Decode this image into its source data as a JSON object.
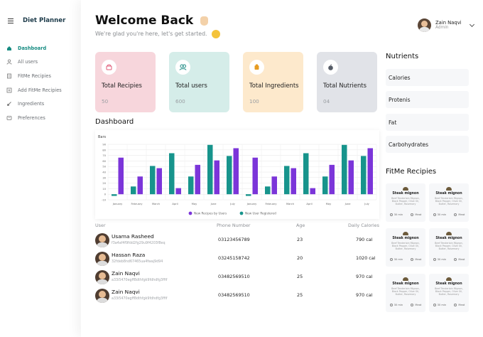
{
  "app": {
    "title": "Diet Planner"
  },
  "sidebar": {
    "items": [
      {
        "label": "Dashboard",
        "icon": "home-icon",
        "active": true
      },
      {
        "label": "All users",
        "icon": "users-icon"
      },
      {
        "label": "FitMe Recipies",
        "icon": "recipe-icon"
      },
      {
        "label": "Add FitMe Recipies",
        "icon": "add-icon"
      },
      {
        "label": "Ingredients",
        "icon": "ingredient-icon"
      },
      {
        "label": "Preferences",
        "icon": "preferences-icon"
      }
    ]
  },
  "header": {
    "welcome": "Welcome Back",
    "subtitle": "We're glad you're here, let's get started."
  },
  "profile": {
    "name": "Zain Naqvi",
    "role": "Admin"
  },
  "stats": [
    {
      "title": "Total Recipies",
      "value": "50",
      "bg": "#f7d6dc",
      "icon_color": "#e05a77"
    },
    {
      "title": "Total users",
      "value": "600",
      "bg": "#d5ede9",
      "icon_color": "#1d8b84"
    },
    {
      "title": "Total Ingredients",
      "value": "100",
      "bg": "#fde9cc",
      "icon_color": "#e79c22"
    },
    {
      "title": "Total Nutrients",
      "value": "04",
      "bg": "#e1e3e8",
      "icon_color": "#555b66"
    }
  ],
  "dashboard": {
    "title": "Dashboard"
  },
  "chart_data": {
    "type": "bar",
    "title": "Bars",
    "categories": [
      "January",
      "February",
      "March",
      "April",
      "May",
      "June",
      "July",
      "January",
      "February",
      "March",
      "April",
      "May",
      "June",
      "July"
    ],
    "series": [
      {
        "name": "New Recipes by Users",
        "color": "#7b35d9",
        "values": [
          66,
          32,
          47,
          11,
          53,
          61,
          83,
          66,
          32,
          47,
          11,
          53,
          61,
          83
        ]
      },
      {
        "name": "New User Registered",
        "color": "#17948c",
        "values": [
          -3,
          14,
          51,
          74,
          32,
          89,
          69,
          -3,
          14,
          51,
          74,
          32,
          89,
          69
        ]
      }
    ],
    "yticks": [
      90,
      80,
      70,
      60,
      50,
      40,
      30,
      20,
      10,
      0,
      -10
    ],
    "ylim": [
      -10,
      90
    ],
    "grid": true,
    "legend": "bottom"
  },
  "table": {
    "headers": {
      "user": "User",
      "phone": "Phone Number",
      "age": "Age",
      "calories": "Daily Calories"
    },
    "rows": [
      {
        "name": "Usama Rasheed",
        "id": "f3a4af4f9fdd2fg29u9f4203f8eq",
        "phone": "03123456789",
        "age": "23",
        "calories": "790 cal"
      },
      {
        "name": "Hassan Raza",
        "id": "32fdeb8nd67465ua4fwaj9d94",
        "phone": "03245158742",
        "age": "20",
        "calories": "1020 cal"
      },
      {
        "name": "Zain Naqvi",
        "id": "a33i5470egff8dthfgk9fdhdfg3ffif",
        "phone": "03482569510",
        "age": "25",
        "calories": "970 cal"
      },
      {
        "name": "Zain Naqvi",
        "id": "a33i5470egff8dthfgk9fdhdfg3ffif",
        "phone": "03482569510",
        "age": "25",
        "calories": "970 cal"
      }
    ]
  },
  "nutrients": {
    "title": "Nutrients",
    "items": [
      "Calories",
      "Protenis",
      "Fat",
      "Carbohydrates"
    ]
  },
  "fitme": {
    "title": "FitMe Recipies",
    "recipes": [
      {
        "name": "Steak mignon",
        "desc": "Beef Tenderloin Mignon, Black Pepper, Olive Oil, Butter, Rosemary",
        "time": "30 min",
        "type": "Meat"
      },
      {
        "name": "Steak mignon",
        "desc": "Beef Tenderloin Mignon, Black Pepper, Olive Oil, Butter, Rosemary",
        "time": "30 min",
        "type": "Meat"
      },
      {
        "name": "Steak mignon",
        "desc": "Beef Tenderloin Mignon, Black Pepper, Olive Oil, Butter, Rosemary",
        "time": "30 min",
        "type": "Meat"
      },
      {
        "name": "Steak mignon",
        "desc": "Beef Tenderloin Mignon, Black Pepper, Olive Oil, Butter, Rosemary",
        "time": "30 min",
        "type": "Meat"
      },
      {
        "name": "Steak mignon",
        "desc": "Beef Tenderloin Mignon, Black Pepper, Olive Oil, Butter, Rosemary",
        "time": "30 min",
        "type": "Meat"
      },
      {
        "name": "Steak mignon",
        "desc": "Beef Tenderloin Mignon, Black Pepper, Olive Oil, Butter, Rosemary",
        "time": "30 min",
        "type": "Meat"
      }
    ]
  }
}
